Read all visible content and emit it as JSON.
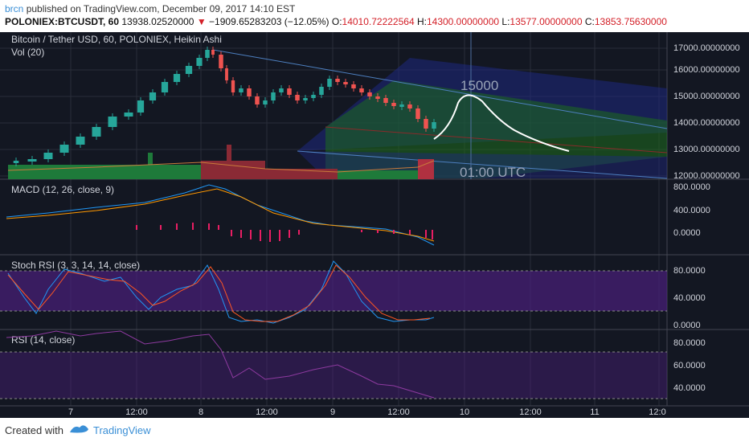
{
  "header": {
    "author": "brcn",
    "published_text": "published on TradingView.com, December 09, 2017 14:10 EST",
    "symbol": "POLONIEX:BTCUSDT, 60",
    "last_price": "13938.02520000",
    "change": "−1909.65283203 (−12.05%)",
    "open_label": "O:",
    "open": "14010.72222564",
    "high_label": "H:",
    "high": "14300.00000000",
    "low_label": "L:",
    "low": "13577.00000000",
    "close_label": "C:",
    "close": "13853.75630000"
  },
  "panes": {
    "price": {
      "title": "Bitcoin / Tether USD, 60, POLONIEX, Heikin Ashi",
      "vol_label": "Vol (20)",
      "axis": [
        "17000.00000000",
        "16000.00000000",
        "15000.00000000",
        "14000.00000000",
        "13000.00000000",
        "12000.00000000"
      ],
      "annotation_price": "15000",
      "annotation_time": "01:00 UTC"
    },
    "macd": {
      "title": "MACD (12, 26, close, 9)",
      "axis": [
        "800.0000",
        "400.0000",
        "0.0000"
      ]
    },
    "stoch": {
      "title": "Stoch RSI (3, 3, 14, 14, close)",
      "axis": [
        "80.0000",
        "40.0000",
        "0.0000"
      ]
    },
    "rsi": {
      "title": "RSI (14, close)",
      "axis": [
        "80.0000",
        "60.0000",
        "40.0000"
      ]
    }
  },
  "time_axis": [
    "7",
    "12:00",
    "8",
    "12:00",
    "9",
    "12:00",
    "10",
    "12:00",
    "11",
    "12:0"
  ],
  "footer": {
    "created": "Created with",
    "brand": "TradingView"
  },
  "colors": {
    "up": "#26a69a",
    "down": "#ef5350",
    "background": "#131722",
    "accent": "#3a8fd6"
  }
}
